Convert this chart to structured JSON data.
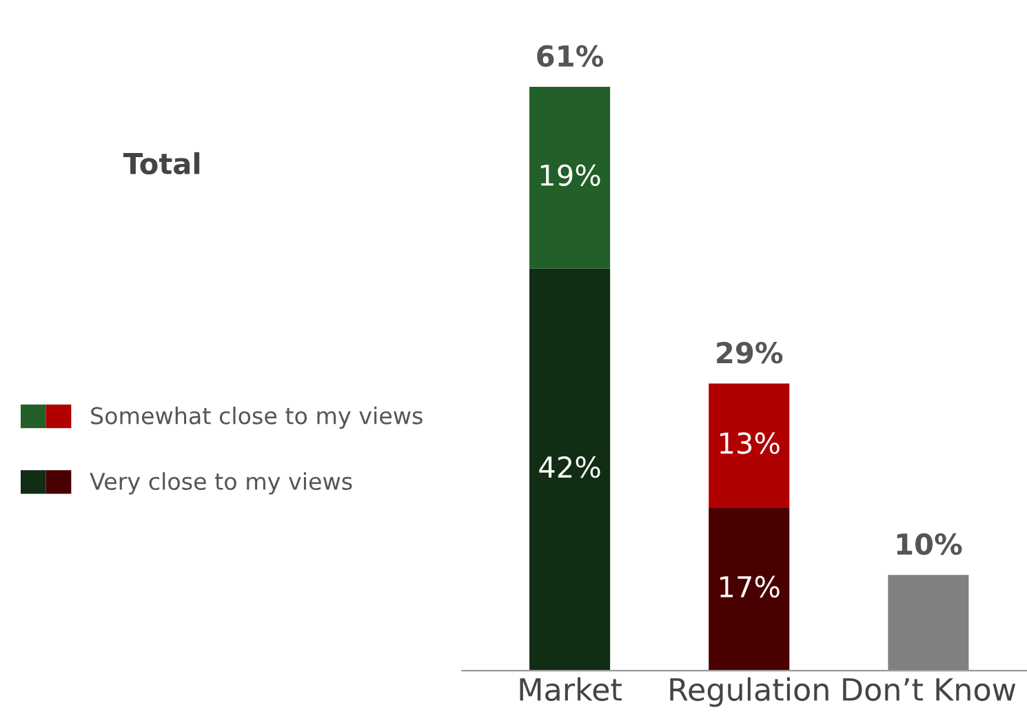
{
  "chart_data": {
    "type": "bar",
    "stacked": true,
    "categories": [
      "Market",
      "Regulation",
      "Don’t Know"
    ],
    "series": [
      {
        "name": "Very close to my views",
        "colors": [
          "#112d14",
          "#4a0000",
          "#808080"
        ],
        "values": [
          42,
          17,
          10
        ],
        "value_labels": [
          "42%",
          "17%",
          null
        ]
      },
      {
        "name": "Somewhat close to my views",
        "colors": [
          "#235f28",
          "#b00000",
          "#808080"
        ],
        "values": [
          19,
          13,
          null
        ],
        "value_labels": [
          "19%",
          "13%",
          null
        ]
      }
    ],
    "totals": [
      "61%",
      "29%",
      "10%"
    ],
    "annotations": [
      "Total"
    ],
    "legend": "left",
    "tick_labels": "x",
    "grid": false
  }
}
